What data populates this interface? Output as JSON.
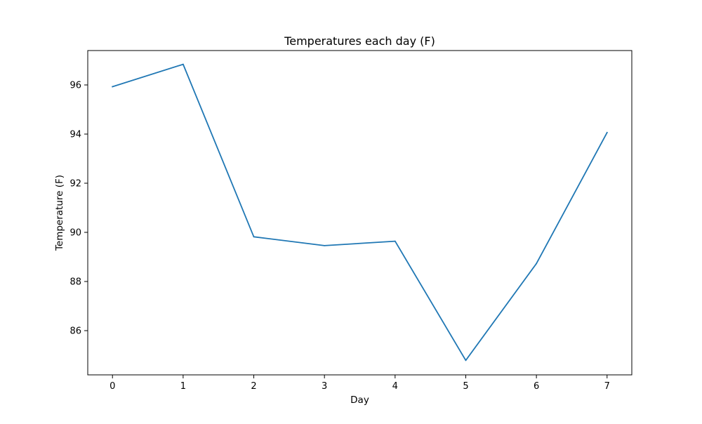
{
  "chart_data": {
    "type": "line",
    "title": "Temperatures each day (F)",
    "xlabel": "Day",
    "ylabel": "Temperature (F)",
    "x": [
      0,
      1,
      2,
      3,
      4,
      5,
      6,
      7
    ],
    "series": [
      {
        "values": [
          95.93,
          96.84,
          89.82,
          89.46,
          89.64,
          84.79,
          88.73,
          94.06
        ]
      }
    ],
    "xticks": [
      0,
      1,
      2,
      3,
      4,
      5,
      6,
      7
    ],
    "yticks": [
      86,
      88,
      90,
      92,
      94,
      96
    ],
    "xlim": [
      -0.35,
      7.35
    ],
    "ylim": [
      84.2,
      97.4
    ],
    "grid": false,
    "legend": "none",
    "colors": {
      "line": "#1f77b4",
      "axes": "#000000"
    }
  }
}
